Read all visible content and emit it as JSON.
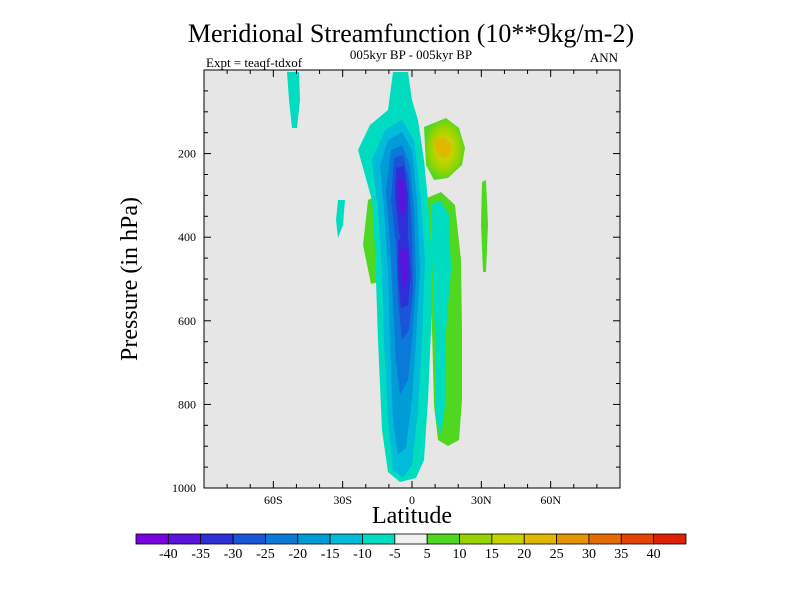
{
  "chart_data": {
    "type": "contour",
    "title": "Meridional Streamfunction (10**9kg/m-2)",
    "subtitle_center": "005kyr BP - 005kyr BP",
    "subtitle_left": "Expt = teaqf-tdxof",
    "subtitle_right": "ANN",
    "xlabel": "Latitude",
    "ylabel": "Pressure (in hPa)",
    "xlim": [
      -90,
      90
    ],
    "ylim": [
      0,
      1000
    ],
    "x_ticks": [
      {
        "value": -60,
        "label": "60S"
      },
      {
        "value": -30,
        "label": "30S"
      },
      {
        "value": 0,
        "label": "0"
      },
      {
        "value": 30,
        "label": "30N"
      },
      {
        "value": 60,
        "label": "60N"
      }
    ],
    "y_ticks": [
      {
        "value": 200,
        "label": "200"
      },
      {
        "value": 400,
        "label": "400"
      },
      {
        "value": 600,
        "label": "600"
      },
      {
        "value": 800,
        "label": "800"
      },
      {
        "value": 1000,
        "label": "1000"
      }
    ],
    "colorbar": {
      "levels": [
        -40,
        -35,
        -30,
        -25,
        -20,
        -15,
        -10,
        -5,
        5,
        10,
        15,
        20,
        25,
        30,
        35,
        40
      ],
      "labels": [
        "-40",
        "-35",
        "-30",
        "-25",
        "-20",
        "-15",
        "-10",
        "-5",
        "5",
        "10",
        "15",
        "20",
        "25",
        "30",
        "35",
        "40"
      ],
      "colors": [
        "#7a00e0",
        "#5a12dc",
        "#2f2fd8",
        "#1a55d8",
        "#0a7ad8",
        "#009cd8",
        "#00bcd8",
        "#00dcc0",
        "#f0f0f0",
        "#50d820",
        "#9ad400",
        "#c8d400",
        "#e0b800",
        "#e49400",
        "#e46c00",
        "#e44400",
        "#e02000"
      ]
    },
    "features": [
      {
        "name": "southern-overturning-cell",
        "lat_center": -3,
        "pressure_top": 60,
        "pressure_bottom": 980,
        "min_value": -40
      },
      {
        "name": "northern-cell-upper",
        "lat_center": 13,
        "pressure_center": 180,
        "max_value": 25
      },
      {
        "name": "northern-positive-column",
        "lat_center": 12,
        "pressure_top": 270,
        "pressure_bottom": 950,
        "value": 5
      }
    ]
  }
}
